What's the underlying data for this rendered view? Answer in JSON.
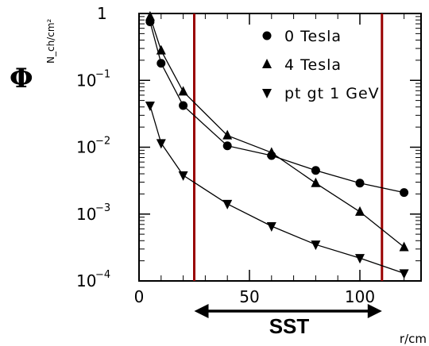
{
  "chart_data": {
    "type": "line",
    "ylabel": "Φ",
    "ylabel_unit": "N_ch/cm²",
    "xlabel": "r/cm",
    "yscale": "log",
    "xlim": [
      0,
      125
    ],
    "ylim": [
      0.0001,
      1
    ],
    "x_ticks": [
      {
        "value": 0,
        "label": "0"
      },
      {
        "value": 50,
        "label": "50"
      },
      {
        "value": 100,
        "label": "100"
      }
    ],
    "y_ticks": [
      {
        "value": 1,
        "label": "1",
        "exp": ""
      },
      {
        "value": 0.1,
        "label": "10",
        "exp": "−1"
      },
      {
        "value": 0.01,
        "label": "10",
        "exp": "−2"
      },
      {
        "value": 0.001,
        "label": "10",
        "exp": "−3"
      },
      {
        "value": 0.0001,
        "label": "10",
        "exp": "−4"
      }
    ],
    "series": [
      {
        "name": "0 Tesla",
        "marker": "circle",
        "x": [
          5,
          10,
          20,
          40,
          60,
          80,
          100,
          120
        ],
        "y": [
          0.75,
          0.18,
          0.042,
          0.0105,
          0.0075,
          0.0045,
          0.0029,
          0.0021
        ]
      },
      {
        "name": "4 Tesla",
        "marker": "triangle-up",
        "x": [
          5,
          10,
          20,
          40,
          60,
          80,
          100,
          120
        ],
        "y": [
          0.9,
          0.28,
          0.068,
          0.015,
          0.0083,
          0.0029,
          0.00108,
          0.00032
        ]
      },
      {
        "name": "pt gt 1 GeV",
        "marker": "triangle-down",
        "x": [
          5,
          10,
          20,
          40,
          60,
          80,
          100,
          120
        ],
        "y": [
          0.042,
          0.0115,
          0.0038,
          0.00142,
          0.00066,
          0.00035,
          0.00022,
          0.00013
        ]
      }
    ],
    "vertical_lines": [
      25,
      110
    ],
    "annotation": "SST",
    "annotation_span": [
      25,
      110
    ],
    "colors": {
      "markers": "#000000",
      "vertical_lines": "#990000",
      "axes": "#000000"
    },
    "legend_placement": "top-right",
    "grid": false
  }
}
